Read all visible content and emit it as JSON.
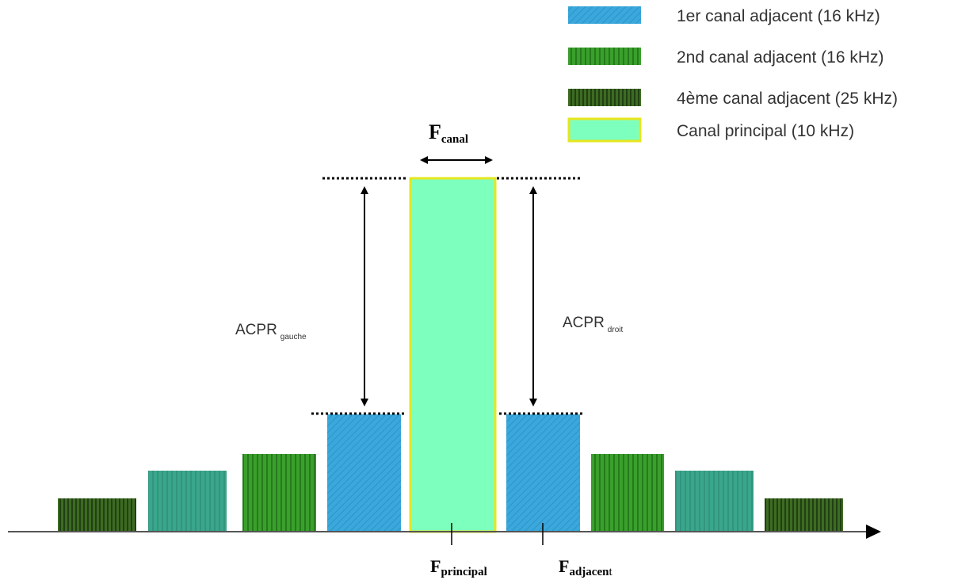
{
  "legend": {
    "items": [
      {
        "label": "1er canal adjacent (16 kHz)",
        "style": "blue-diagonal"
      },
      {
        "label": "2nd canal adjacent (16 kHz)",
        "style": "green-vertical"
      },
      {
        "label": "4ème canal adjacent (25 kHz)",
        "style": "darkgreen-vertical"
      },
      {
        "label": "Canal principal (10 kHz)",
        "style": "mint-solid"
      }
    ]
  },
  "labels": {
    "f_canal_main": "F",
    "f_canal_sub": "canal",
    "acpr_left_main": "ACPR",
    "acpr_left_sub": "gauche",
    "acpr_right_main": "ACPR",
    "acpr_right_sub": "droit",
    "f_principal_main": "F",
    "f_principal_sub": "principal",
    "f_adjacent_main": "F",
    "f_adjacent_sub": "adjacen",
    "f_adjacent_tail": "t"
  },
  "colors": {
    "blue": "#3aa8dc",
    "blue_stripe": "#2a86b8",
    "green": "#3aa02c",
    "green_stripe": "#1f6e18",
    "darkgreen": "#3d6b22",
    "darkgreen_stripe": "#1c3a10",
    "teal": "#3aa68c",
    "teal_stripe": "#2c7f6c",
    "mint": "#7dffbe",
    "mint_border": "#e6e61e"
  }
}
